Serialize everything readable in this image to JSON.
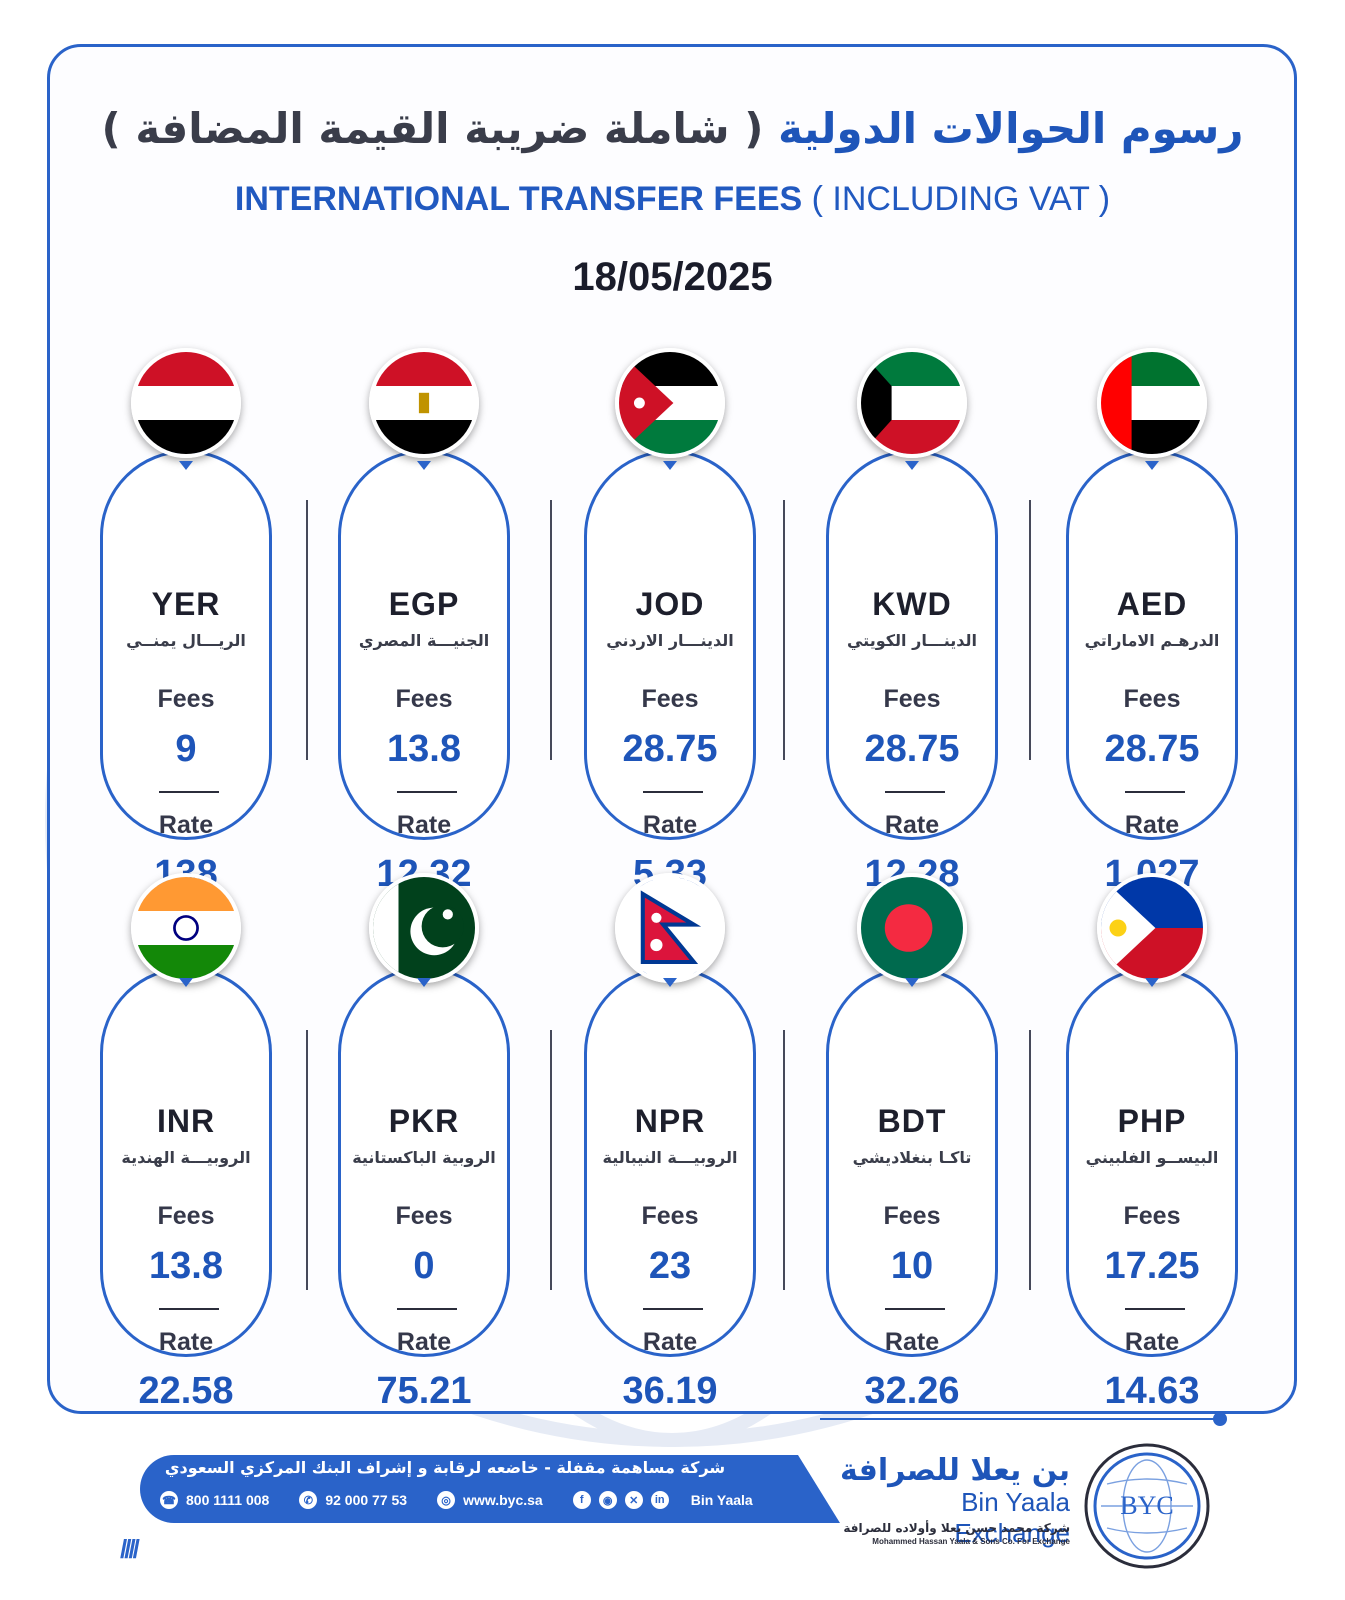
{
  "header": {
    "title_ar_main": "رسوم الحوالات الدولية",
    "title_ar_sub": "( شاملة ضريبة القيمة المضافة )",
    "title_en_main": "INTERNATIONAL TRANSFER FEES",
    "title_en_sub": "( INCLUDING VAT )",
    "date": "18/05/2025"
  },
  "labels": {
    "fees": "Fees",
    "rate": "Rate"
  },
  "currencies": [
    {
      "code": "AED",
      "name_ar": "الدرهـم الاماراتي",
      "fees": "28.75",
      "rate": "1.027",
      "flag": "uae-flag-icon"
    },
    {
      "code": "KWD",
      "name_ar": "الدينـــار الكويتي",
      "fees": "28.75",
      "rate": "12.28",
      "flag": "kuwait-flag-icon"
    },
    {
      "code": "JOD",
      "name_ar": "الدينـــار الاردني",
      "fees": "28.75",
      "rate": "5.33",
      "flag": "jordan-flag-icon"
    },
    {
      "code": "EGP",
      "name_ar": "الجنيـــة المصري",
      "fees": "13.8",
      "rate": "12.32",
      "flag": "egypt-flag-icon"
    },
    {
      "code": "YER",
      "name_ar": "الريـــال يمنــي",
      "fees": "9",
      "rate": "138",
      "flag": "yemen-flag-icon"
    },
    {
      "code": "PHP",
      "name_ar": "البيســو الفلبيني",
      "fees": "17.25",
      "rate": "14.63",
      "flag": "philippines-flag-icon"
    },
    {
      "code": "BDT",
      "name_ar": "تاكـا بنغلاديشي",
      "fees": "10",
      "rate": "32.26",
      "flag": "bangladesh-flag-icon"
    },
    {
      "code": "NPR",
      "name_ar": "الروبيـــة النيبالية",
      "fees": "23",
      "rate": "36.19",
      "flag": "nepal-flag-icon"
    },
    {
      "code": "PKR",
      "name_ar": "الروبية الباكستانية",
      "fees": "0",
      "rate": "75.21",
      "flag": "pakistan-flag-icon"
    },
    {
      "code": "INR",
      "name_ar": "الروبيـــة الهندية",
      "fees": "13.8",
      "rate": "22.58",
      "flag": "india-flag-icon"
    }
  ],
  "footer": {
    "company_ar": "شركة مساهمة مقفلة - خاضعه لرقابة و إشراف البنك المركزي السعودي",
    "phone": "800 1111 008",
    "whatsapp": "92 000 77 53",
    "website": "www.byc.sa",
    "social_handle": "Bin Yaala",
    "brand_ar": "بن يعلا للصرافة",
    "brand_en": "Bin Yaala Exchange",
    "brand_ar_small": "شركة محمد حسن يعلا وأولاده للصرافة",
    "brand_en_small": "Mohammed Hassan Yaala & Sons Co. For Exchange",
    "logo_text": "BYC",
    "slashes": "////"
  },
  "colors": {
    "accent": "#2a63c9",
    "value_blue": "#1e55b9",
    "text_dark": "#1d1f2c"
  }
}
